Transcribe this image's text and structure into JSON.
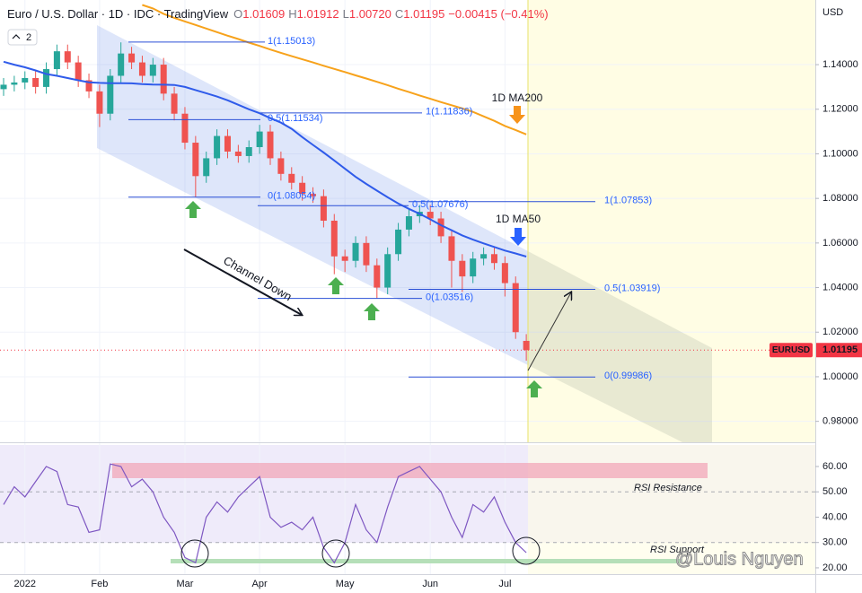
{
  "chart_data": [
    {
      "type": "candlestick",
      "title": "Euro / U.S. Dollar · 1D · IDC · TradingView",
      "legend_items": [
        {
          "label": "O",
          "value": "1.01609"
        },
        {
          "label": "H",
          "value": "1.01912"
        },
        {
          "label": "L",
          "value": "1.00720"
        },
        {
          "label": "C",
          "value": "1.01195"
        },
        {
          "label": "",
          "value": "−0.00415 (−0.41%)"
        }
      ],
      "currency": "USD",
      "categories": [
        null,
        null,
        "2022",
        null,
        null,
        null,
        null,
        null,
        null,
        "Feb",
        null,
        null,
        null,
        null,
        null,
        null,
        null,
        "Mar",
        null,
        null,
        null,
        null,
        null,
        null,
        "Apr",
        null,
        null,
        null,
        null,
        null,
        null,
        null,
        "May",
        null,
        null,
        null,
        null,
        null,
        null,
        null,
        "Jun",
        null,
        null,
        null,
        null,
        null,
        null,
        "Jul",
        null,
        null
      ],
      "open": [
        1.129,
        1.131,
        1.132,
        1.134,
        1.13,
        1.138,
        1.146,
        1.141,
        1.133,
        1.128,
        1.118,
        1.135,
        1.145,
        1.141,
        1.135,
        1.14,
        1.127,
        1.118,
        1.105,
        1.09,
        1.098,
        1.108,
        1.101,
        1.099,
        1.103,
        1.11,
        1.098,
        1.091,
        1.087,
        1.082,
        1.081,
        1.07,
        1.054,
        1.052,
        1.06,
        1.05,
        1.04,
        1.055,
        1.066,
        1.072,
        1.074,
        1.071,
        1.063,
        1.052,
        1.045,
        1.053,
        1.055,
        1.051,
        1.042,
        1.01609
      ],
      "high": [
        1.134,
        1.135,
        1.137,
        1.137,
        1.141,
        1.149,
        1.149,
        1.144,
        1.136,
        1.131,
        1.138,
        1.15,
        1.148,
        1.144,
        1.143,
        1.143,
        1.13,
        1.121,
        1.108,
        1.101,
        1.111,
        1.111,
        1.104,
        1.106,
        1.113,
        1.113,
        1.101,
        1.094,
        1.09,
        1.085,
        1.084,
        1.073,
        1.057,
        1.063,
        1.063,
        1.053,
        1.058,
        1.069,
        1.075,
        1.077,
        1.077,
        1.074,
        1.066,
        1.055,
        1.056,
        1.058,
        1.058,
        1.054,
        1.045,
        1.01912
      ],
      "low": [
        1.126,
        1.128,
        1.129,
        1.127,
        1.127,
        1.135,
        1.138,
        1.13,
        1.125,
        1.112,
        1.115,
        1.132,
        1.138,
        1.132,
        1.132,
        1.124,
        1.115,
        1.102,
        1.0805,
        1.087,
        1.095,
        1.098,
        1.096,
        1.096,
        1.1,
        1.095,
        1.088,
        1.084,
        1.079,
        1.078,
        1.067,
        1.046,
        1.047,
        1.049,
        1.047,
        1.0352,
        1.037,
        1.052,
        1.063,
        1.069,
        1.068,
        1.06,
        1.04,
        1.038,
        1.042,
        1.05,
        1.048,
        1.036,
        1.017,
        1.0072
      ],
      "close": [
        1.131,
        1.132,
        1.134,
        1.13,
        1.138,
        1.146,
        1.141,
        1.133,
        1.128,
        1.118,
        1.135,
        1.145,
        1.141,
        1.135,
        1.14,
        1.127,
        1.118,
        1.105,
        1.09,
        1.098,
        1.108,
        1.101,
        1.099,
        1.103,
        1.11,
        1.098,
        1.091,
        1.087,
        1.082,
        1.081,
        1.07,
        1.054,
        1.052,
        1.06,
        1.05,
        1.04,
        1.055,
        1.066,
        1.072,
        1.074,
        1.071,
        1.063,
        1.052,
        1.045,
        1.053,
        1.055,
        1.051,
        1.042,
        1.02,
        1.01195
      ],
      "up_color": "#26a69a",
      "down_color": "#ef5350",
      "ylim": [
        0.9706,
        1.169
      ],
      "yticks": [
        {
          "value": 0.98,
          "label": "0.98000"
        },
        {
          "value": 1.0,
          "label": "1.00000"
        },
        {
          "value": 1.02,
          "label": "1.02000"
        },
        {
          "value": 1.04,
          "label": "1.04000"
        },
        {
          "value": 1.06,
          "label": "1.06000"
        },
        {
          "value": 1.08,
          "label": "1.08000"
        },
        {
          "value": 1.1,
          "label": "1.10000"
        },
        {
          "value": 1.12,
          "label": "1.12000"
        },
        {
          "value": 1.14,
          "label": "1.14000"
        }
      ],
      "grid": true,
      "series": [
        {
          "name": "1D MA50",
          "color": "#2f5bea",
          "values": [
            1.1413,
            1.14,
            1.1388,
            1.1374,
            1.1358,
            1.135,
            1.134,
            1.133,
            1.1321,
            1.1318,
            1.1317,
            1.1317,
            1.1316,
            1.1313,
            1.1311,
            1.131,
            1.1309,
            1.13,
            1.1286,
            1.1272,
            1.1257,
            1.124,
            1.122,
            1.12,
            1.1182,
            1.116,
            1.114,
            1.1112,
            1.1075,
            1.104,
            1.1006,
            1.097,
            1.0933,
            1.0897,
            1.0865,
            1.0835,
            1.0805,
            1.0777,
            1.0753,
            1.0731,
            1.0706,
            1.068,
            1.0657,
            1.0634,
            1.0615,
            1.0598,
            1.0582,
            1.0566,
            1.0553,
            1.0539
          ]
        },
        {
          "name": "1D MA200",
          "color": "#f7a21b",
          "values": [
            null,
            null,
            null,
            null,
            null,
            null,
            null,
            null,
            null,
            null,
            null,
            null,
            null,
            1.1668,
            1.1652,
            1.1628,
            1.161,
            1.1594,
            1.1578,
            1.1562,
            1.1546,
            1.153,
            1.1515,
            1.1499,
            1.1484,
            1.1468,
            1.1453,
            1.1438,
            1.1424,
            1.141,
            1.1395,
            1.1381,
            1.1367,
            1.1352,
            1.1338,
            1.1323,
            1.1308,
            1.1292,
            1.1277,
            1.1262,
            1.1247,
            1.1232,
            1.1218,
            1.1204,
            1.1188,
            1.1168,
            1.1148,
            1.1125,
            1.1107,
            1.1087
          ]
        }
      ],
      "levels": [
        {
          "label": "1(1.15013)",
          "value": 1.15013
        },
        {
          "label": "0.5(1.11534)",
          "value": 1.11534
        },
        {
          "label": "0(1.08054)",
          "value": 1.08054
        },
        {
          "label": "1(1.11836)",
          "value": 1.11836
        },
        {
          "label": "0.5(1.07676)",
          "value": 1.07676
        },
        {
          "label": "0(1.03516)",
          "value": 1.03516
        },
        {
          "label": "1(1.07853)",
          "value": 1.07853
        },
        {
          "label": "0.5(1.03919)",
          "value": 1.03919
        },
        {
          "label": "0(0.99986)",
          "value": 0.99986
        }
      ],
      "annotation": "Channel Down",
      "symbol_label": "EURUSD",
      "last_price": 1.01195,
      "last_color": "#f23645"
    },
    {
      "type": "line",
      "series": [
        {
          "color": "#7e57c2",
          "values": [
            45,
            52,
            48,
            54,
            60,
            58,
            45,
            44,
            34,
            35,
            61,
            60,
            52,
            55,
            50,
            40,
            34,
            24,
            22,
            40,
            46,
            42,
            48,
            52,
            56,
            40,
            36,
            38,
            35,
            40,
            28,
            22,
            30,
            45,
            35,
            30,
            44,
            56,
            58,
            60,
            55,
            50,
            40,
            32,
            45,
            42,
            48,
            38,
            30,
            26
          ]
        }
      ],
      "ylim": [
        17.5,
        68.5
      ],
      "yticks": [
        {
          "value": 20,
          "label": "20.00"
        },
        {
          "value": 30,
          "label": "30.00"
        },
        {
          "value": 40,
          "label": "40.00"
        },
        {
          "value": 50,
          "label": "50.00"
        },
        {
          "value": 60,
          "label": "60.00"
        }
      ],
      "reference_lines": [
        50,
        30
      ],
      "annotations": [
        "RSI Resistance",
        "RSI Support"
      ]
    }
  ],
  "toolbar": {
    "badge": "2"
  },
  "watermark": "@Louis Nguyen"
}
